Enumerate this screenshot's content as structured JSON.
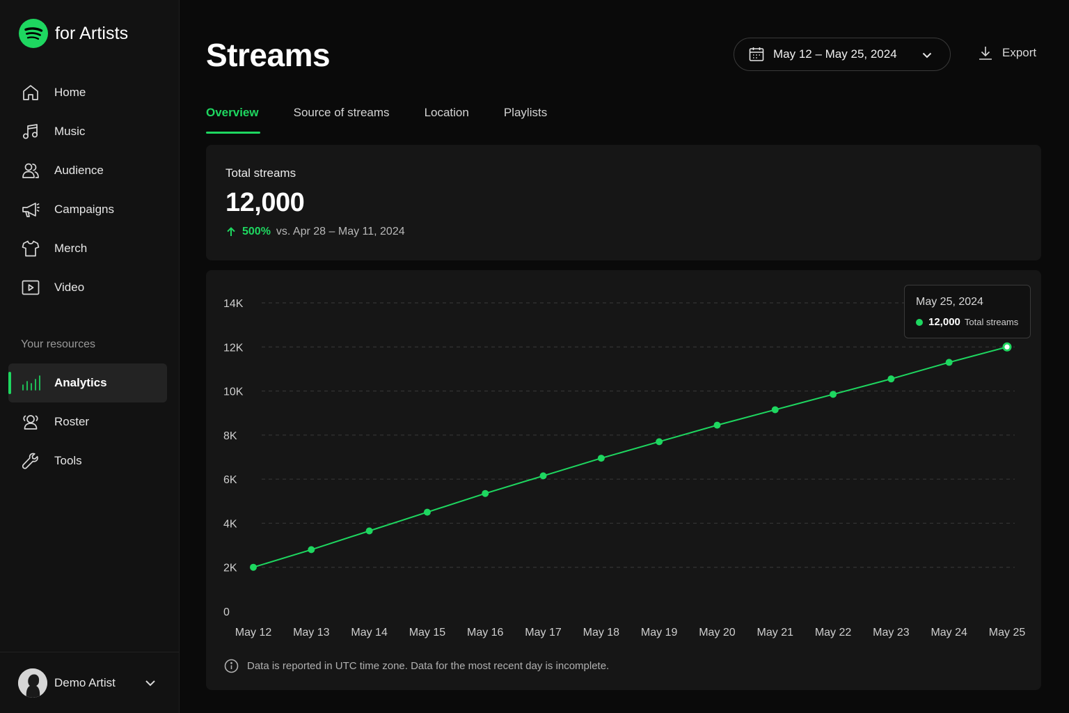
{
  "brand": {
    "name": "for Artists"
  },
  "nav": {
    "items": [
      {
        "label": "Home",
        "icon": "home-icon"
      },
      {
        "label": "Music",
        "icon": "music-note-icon"
      },
      {
        "label": "Audience",
        "icon": "audience-icon"
      },
      {
        "label": "Campaigns",
        "icon": "megaphone-icon"
      },
      {
        "label": "Merch",
        "icon": "shirt-icon"
      },
      {
        "label": "Video",
        "icon": "video-play-icon"
      }
    ],
    "resources_label": "Your resources",
    "resources": [
      {
        "label": "Analytics",
        "icon": "bar-chart-icon",
        "active": true
      },
      {
        "label": "Roster",
        "icon": "roster-icon"
      },
      {
        "label": "Tools",
        "icon": "wrench-icon"
      }
    ]
  },
  "user": {
    "name": "Demo Artist"
  },
  "header": {
    "title": "Streams",
    "date_range": "May 12 – May 25, 2024",
    "export_label": "Export"
  },
  "tabs": [
    {
      "label": "Overview",
      "active": true
    },
    {
      "label": "Source of streams"
    },
    {
      "label": "Location"
    },
    {
      "label": "Playlists"
    }
  ],
  "summary": {
    "label": "Total streams",
    "value": "12,000",
    "change_pct": "500%",
    "comparison": "vs. Apr 28 – May 11, 2024"
  },
  "tooltip": {
    "date": "May 25, 2024",
    "value": "12,000",
    "label": "Total streams"
  },
  "footnote": "Data is reported in UTC time zone. Data for the most recent day is incomplete.",
  "colors": {
    "accent": "#1ed760",
    "background": "#0a0a0a",
    "card": "#161616"
  },
  "chart_data": {
    "type": "line",
    "categories": [
      "May 12",
      "May 13",
      "May 14",
      "May 15",
      "May 16",
      "May 17",
      "May 18",
      "May 19",
      "May 20",
      "May 21",
      "May 22",
      "May 23",
      "May 24",
      "May 25"
    ],
    "series": [
      {
        "values": [
          2000,
          2800,
          3650,
          4500,
          5350,
          6150,
          6950,
          7700,
          8450,
          9150,
          9850,
          10550,
          11300,
          12000
        ]
      }
    ],
    "yticks": [
      0,
      2000,
      4000,
      6000,
      8000,
      10000,
      12000,
      14000
    ],
    "ytick_labels": [
      "0",
      "2K",
      "4K",
      "6K",
      "8K",
      "10K",
      "12K",
      "14K"
    ],
    "ylim": [
      0,
      14000
    ],
    "grid": true,
    "highlight_index": 13
  }
}
